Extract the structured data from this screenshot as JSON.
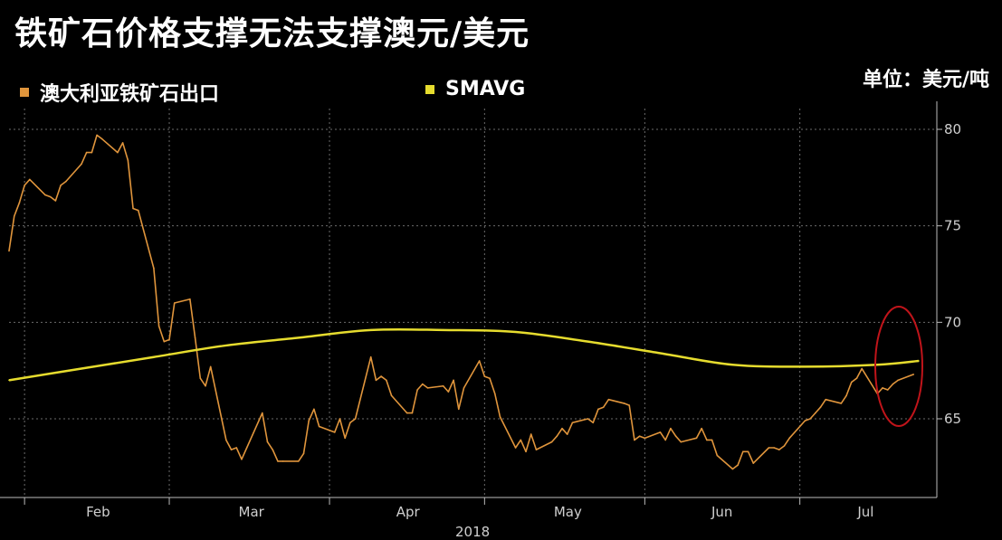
{
  "title": "铁矿石价格支撑无法支撑澳元/美元",
  "unit_label": "单位：美元/吨",
  "colors": {
    "background": "#000000",
    "iron_ore": "#e0953c",
    "smavg": "#e6dc2e",
    "grid": "#6b6b6b",
    "annotation": "#c0141a"
  },
  "chart_data": {
    "type": "line",
    "title": "铁矿石价格支撑无法支撑澳元/美元",
    "ylabel": "单位：美元/吨",
    "xlabel": "2018",
    "ylim": [
      61.5,
      81
    ],
    "yticks": [
      80,
      75,
      70,
      65
    ],
    "month_ticks": [
      "Feb",
      "Mar",
      "Apr",
      "May",
      "Jun",
      "Jul"
    ],
    "year_label": "2018",
    "legend_position": "top-left",
    "grid": true,
    "series": [
      {
        "name": "澳大利亚铁矿石出口",
        "color": "#e0953c",
        "x": [
          "2018-01-29",
          "2018-01-30",
          "2018-01-31",
          "2018-02-01",
          "2018-02-02",
          "2018-02-05",
          "2018-02-06",
          "2018-02-07",
          "2018-02-08",
          "2018-02-09",
          "2018-02-12",
          "2018-02-13",
          "2018-02-14",
          "2018-02-15",
          "2018-02-16",
          "2018-02-19",
          "2018-02-20",
          "2018-02-21",
          "2018-02-22",
          "2018-02-23",
          "2018-02-26",
          "2018-02-27",
          "2018-02-28",
          "2018-03-01",
          "2018-03-02",
          "2018-03-05",
          "2018-03-06",
          "2018-03-07",
          "2018-03-08",
          "2018-03-09",
          "2018-03-12",
          "2018-03-13",
          "2018-03-14",
          "2018-03-15",
          "2018-03-16",
          "2018-03-19",
          "2018-03-20",
          "2018-03-21",
          "2018-03-22",
          "2018-03-23",
          "2018-03-26",
          "2018-03-27",
          "2018-03-28",
          "2018-03-29",
          "2018-03-30",
          "2018-04-02",
          "2018-04-03",
          "2018-04-04",
          "2018-04-05",
          "2018-04-06",
          "2018-04-09",
          "2018-04-10",
          "2018-04-11",
          "2018-04-12",
          "2018-04-13",
          "2018-04-16",
          "2018-04-17",
          "2018-04-18",
          "2018-04-19",
          "2018-04-20",
          "2018-04-23",
          "2018-04-24",
          "2018-04-25",
          "2018-04-26",
          "2018-04-27",
          "2018-04-30",
          "2018-05-01",
          "2018-05-02",
          "2018-05-03",
          "2018-05-04",
          "2018-05-07",
          "2018-05-08",
          "2018-05-09",
          "2018-05-10",
          "2018-05-11",
          "2018-05-14",
          "2018-05-15",
          "2018-05-16",
          "2018-05-17",
          "2018-05-18",
          "2018-05-21",
          "2018-05-22",
          "2018-05-23",
          "2018-05-24",
          "2018-05-25",
          "2018-05-28",
          "2018-05-29",
          "2018-05-30",
          "2018-05-31",
          "2018-06-01",
          "2018-06-04",
          "2018-06-05",
          "2018-06-06",
          "2018-06-07",
          "2018-06-08",
          "2018-06-11",
          "2018-06-12",
          "2018-06-13",
          "2018-06-14",
          "2018-06-15",
          "2018-06-18",
          "2018-06-19",
          "2018-06-20",
          "2018-06-21",
          "2018-06-22",
          "2018-06-25",
          "2018-06-26",
          "2018-06-27",
          "2018-06-28",
          "2018-06-29",
          "2018-07-02",
          "2018-07-03",
          "2018-07-04",
          "2018-07-05",
          "2018-07-06",
          "2018-07-09",
          "2018-07-10",
          "2018-07-11",
          "2018-07-12",
          "2018-07-13",
          "2018-07-16",
          "2018-07-17",
          "2018-07-18",
          "2018-07-19",
          "2018-07-20",
          "2018-07-23"
        ],
        "values": [
          73.7,
          75.5,
          76.2,
          77.1,
          77.4,
          76.6,
          76.5,
          76.3,
          77.1,
          77.3,
          78.2,
          78.8,
          78.8,
          79.7,
          79.5,
          78.8,
          79.3,
          78.4,
          75.9,
          75.8,
          72.8,
          69.8,
          69.0,
          69.1,
          71.0,
          71.2,
          69.2,
          67.1,
          66.7,
          67.7,
          63.9,
          63.4,
          63.5,
          62.9,
          63.5,
          65.3,
          63.8,
          63.4,
          62.8,
          62.8,
          62.8,
          63.2,
          64.9,
          65.5,
          64.6,
          64.3,
          65.0,
          64.0,
          64.8,
          65.0,
          68.2,
          67.0,
          67.2,
          67.0,
          66.2,
          65.3,
          65.3,
          66.5,
          66.8,
          66.6,
          66.7,
          66.4,
          67.0,
          65.5,
          66.6,
          68.0,
          67.2,
          67.1,
          66.3,
          65.1,
          63.5,
          63.9,
          63.3,
          64.2,
          63.4,
          63.8,
          64.1,
          64.5,
          64.2,
          64.8,
          65.0,
          64.8,
          65.5,
          65.6,
          66.0,
          65.8,
          65.7,
          63.9,
          64.1,
          64.0,
          64.3,
          63.9,
          64.5,
          64.1,
          63.8,
          64.0,
          64.5,
          63.9,
          63.9,
          63.1,
          62.4,
          62.6,
          63.3,
          63.3,
          62.7,
          63.5,
          63.5,
          63.4,
          63.6,
          64.0,
          64.9,
          65.0,
          65.3,
          65.6,
          66.0,
          65.8,
          66.2,
          66.9,
          67.1,
          67.6,
          66.3,
          66.6,
          66.5,
          66.8,
          67.0,
          67.3
        ],
        "note": ""
      },
      {
        "name": "SMAVG",
        "color": "#e6dc2e",
        "x": [
          "2018-01-29",
          "2018-02-12",
          "2018-02-26",
          "2018-03-12",
          "2018-03-26",
          "2018-04-09",
          "2018-04-23",
          "2018-05-07",
          "2018-05-21",
          "2018-06-04",
          "2018-06-18",
          "2018-07-02",
          "2018-07-16",
          "2018-07-24"
        ],
        "values": [
          67.0,
          67.6,
          68.2,
          68.8,
          69.2,
          69.6,
          69.6,
          69.5,
          69.0,
          68.4,
          67.8,
          67.7,
          67.8,
          68.0
        ]
      }
    ]
  }
}
